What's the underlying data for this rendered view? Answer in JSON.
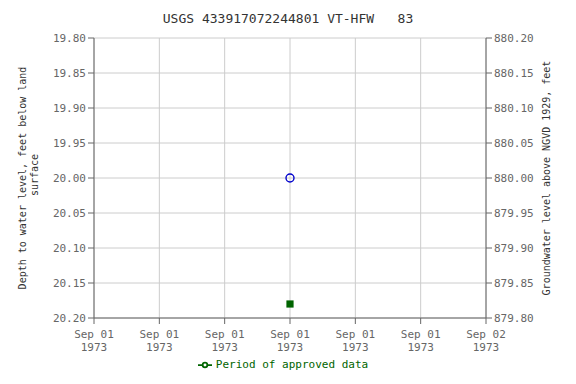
{
  "chart_data": {
    "type": "scatter",
    "title": "USGS 433917072244801 VT-HFW   83",
    "y_label": "Depth to water level, feet below land\n surface",
    "y2_label": "Groundwater level above NGVD 1929, feet",
    "categories": [
      "Sep 01\n1973",
      "Sep 01\n1973",
      "Sep 01\n1973",
      "Sep 01\n1973",
      "Sep 01\n1973",
      "Sep 01\n1973",
      "Sep 02\n1973"
    ],
    "series": [
      {
        "color": "#0000cc",
        "marker": "open_circle",
        "values": [
          null,
          null,
          null,
          20.0,
          null,
          null,
          null
        ]
      },
      {
        "name": "Period of approved data",
        "color": "#006400",
        "marker": "square",
        "values": [
          null,
          null,
          null,
          20.18,
          null,
          null,
          null
        ]
      }
    ],
    "ylim": [
      20.2,
      19.8
    ],
    "yticks": [
      {
        "value": 19.8,
        "label": "19.80"
      },
      19.85,
      {
        "value": 19.9,
        "label": "19.90"
      },
      19.95,
      {
        "value": 20.0,
        "label": "20.00"
      },
      20.05,
      {
        "value": 20.1,
        "label": "20.10"
      },
      20.15,
      {
        "value": 20.2,
        "label": "20.20"
      }
    ],
    "y2lim": [
      879.8,
      880.2
    ],
    "y2ticks": [
      {
        "value": 880.2,
        "label": "880.20"
      },
      880.15,
      {
        "value": 880.1,
        "label": "880.10"
      },
      880.05,
      {
        "value": 880.0,
        "label": "880.00"
      },
      879.95,
      {
        "value": 879.9,
        "label": "879.90"
      },
      879.85,
      {
        "value": 879.8,
        "label": "879.80"
      }
    ],
    "grid": true,
    "legend": "bottom"
  }
}
